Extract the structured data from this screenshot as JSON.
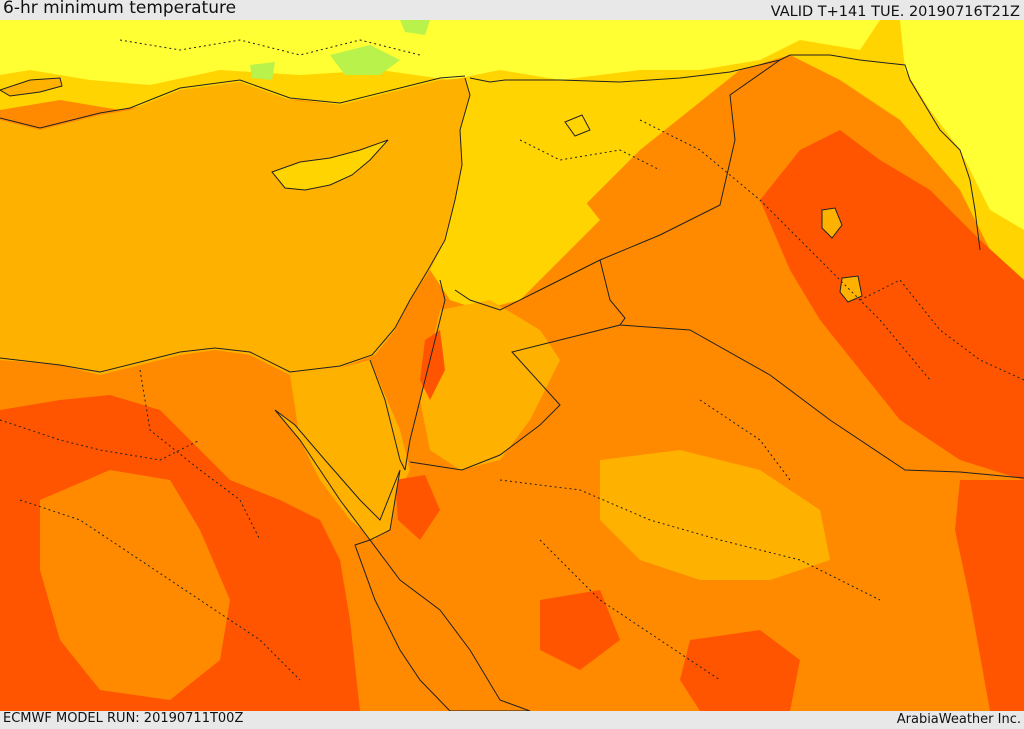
{
  "header": {
    "title": "6-hr minimum temperature",
    "valid": "VALID T+141 TUE. 20190716T21Z"
  },
  "footer": {
    "model_run": "ECMWF MODEL RUN: 20190711T00Z",
    "credit": "ArabiaWeather Inc."
  },
  "colors": {
    "sea": "#ffb100",
    "warm": "#ff8a00",
    "hot": "#ff5500",
    "mild": "#ffd400",
    "cool": "#ffff33",
    "cooler": "#b9f24a",
    "border": "#222222"
  }
}
